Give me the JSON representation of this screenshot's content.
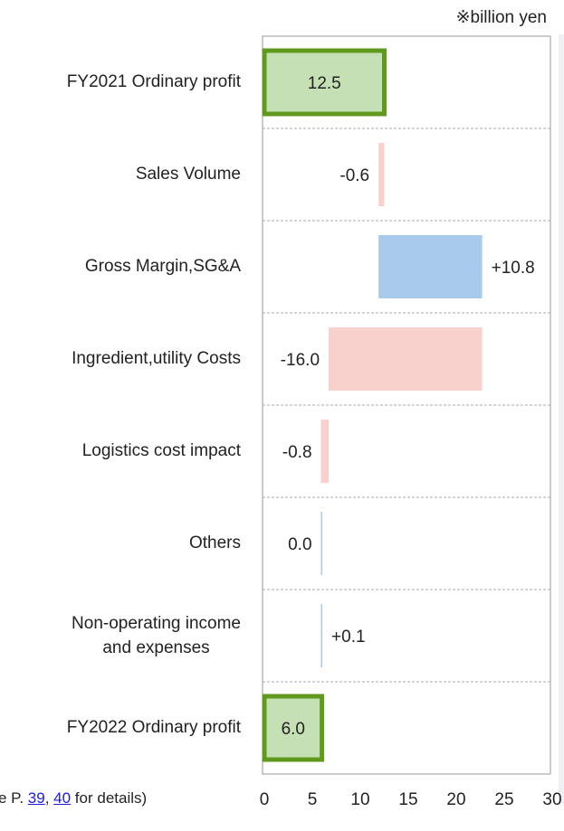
{
  "chart_data": {
    "type": "waterfall",
    "unit_label": "※billion yen",
    "categories": [
      "FY2021 Ordinary profit",
      "Sales Volume",
      "Gross Margin,SG&A",
      "Ingredient,utility Costs",
      "Logistics cost impact",
      "Others",
      "Non-operating income\nand expenses",
      "FY2022 Ordinary profit"
    ],
    "values": [
      12.5,
      -0.6,
      10.8,
      -16.0,
      -0.8,
      0.0,
      0.1,
      6.0
    ],
    "value_labels": [
      "12.5",
      "-0.6",
      "+10.8",
      "-16.0",
      "-0.8",
      "0.0",
      "+0.1",
      "6.0"
    ],
    "measure": [
      "absolute",
      "relative",
      "relative",
      "relative",
      "relative",
      "relative",
      "relative",
      "absolute"
    ],
    "colors": {
      "total": "#c5e0b4",
      "total_border": "#5f9a1c",
      "increase": "#a9cbeb",
      "decrease": "#f9d1cc",
      "decrease_label": "#e00000"
    },
    "xlim": [
      0,
      30
    ],
    "xticks": [
      0,
      5,
      10,
      15,
      20,
      25,
      30
    ],
    "note": [
      "e P. ",
      "39",
      ", ",
      "40",
      " for details)"
    ]
  }
}
